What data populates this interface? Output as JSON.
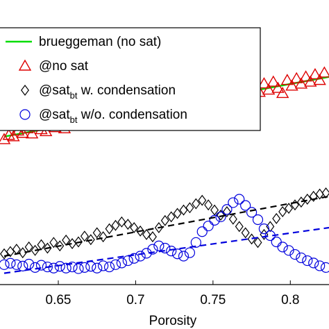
{
  "chart_data": {
    "type": "scatter",
    "title": "",
    "xlabel": "Porosity",
    "ylabel": "",
    "xlim": [
      0.615,
      0.825
    ],
    "ylim": [
      0.0,
      1.0
    ],
    "xticks": [
      "0.65",
      "0.7",
      "0.75",
      "0.8"
    ],
    "xtick_values": [
      0.65,
      0.7,
      0.75,
      0.8
    ],
    "grid": false,
    "legend_placement": "top-left",
    "series": [
      {
        "name": "brueggeman (no sat)",
        "kind": "line",
        "color": "#00dd00",
        "x": [
          0.615,
          0.825
        ],
        "y": [
          0.52,
          0.73
        ]
      },
      {
        "name": "@no sat",
        "kind": "triangle",
        "color": "#dd0000",
        "x": [
          0.615,
          0.618,
          0.621,
          0.624,
          0.627,
          0.63,
          0.633,
          0.636,
          0.639,
          0.642,
          0.645,
          0.648,
          0.651,
          0.654,
          0.657,
          0.66,
          0.663,
          0.666,
          0.669,
          0.672,
          0.675,
          0.678,
          0.681,
          0.684,
          0.687,
          0.69,
          0.693,
          0.696,
          0.699,
          0.702,
          0.705,
          0.708,
          0.711,
          0.714,
          0.717,
          0.72,
          0.723,
          0.726,
          0.729,
          0.732,
          0.735,
          0.738,
          0.741,
          0.744,
          0.747,
          0.75,
          0.753,
          0.756,
          0.759,
          0.762,
          0.765,
          0.768,
          0.771,
          0.774,
          0.777,
          0.78,
          0.783,
          0.786,
          0.789,
          0.792,
          0.795,
          0.798,
          0.801,
          0.804,
          0.807,
          0.81,
          0.813,
          0.816,
          0.819,
          0.822
        ],
        "y": [
          0.51,
          0.525,
          0.52,
          0.54,
          0.532,
          0.548,
          0.53,
          0.556,
          0.545,
          0.538,
          0.562,
          0.552,
          0.57,
          0.548,
          0.578,
          0.565,
          0.582,
          0.568,
          0.59,
          0.576,
          0.596,
          0.58,
          0.602,
          0.588,
          0.575,
          0.61,
          0.595,
          0.622,
          0.6,
          0.615,
          0.59,
          0.628,
          0.605,
          0.636,
          0.612,
          0.642,
          0.62,
          0.6,
          0.648,
          0.625,
          0.656,
          0.632,
          0.662,
          0.64,
          0.668,
          0.65,
          0.674,
          0.655,
          0.68,
          0.662,
          0.688,
          0.668,
          0.694,
          0.66,
          0.7,
          0.676,
          0.706,
          0.684,
          0.712,
          0.69,
          0.672,
          0.718,
          0.698,
          0.724,
          0.705,
          0.73,
          0.712,
          0.738,
          0.718,
          0.744
        ]
      },
      {
        "name": "@sat_bt w. condensation",
        "kind": "diamond",
        "color": "#000000",
        "x": [
          0.615,
          0.619,
          0.623,
          0.627,
          0.631,
          0.635,
          0.639,
          0.643,
          0.647,
          0.651,
          0.655,
          0.659,
          0.663,
          0.667,
          0.671,
          0.675,
          0.679,
          0.683,
          0.687,
          0.691,
          0.695,
          0.699,
          0.703,
          0.707,
          0.711,
          0.715,
          0.719,
          0.723,
          0.727,
          0.731,
          0.735,
          0.739,
          0.743,
          0.747,
          0.751,
          0.755,
          0.759,
          0.763,
          0.767,
          0.771,
          0.775,
          0.779,
          0.783,
          0.787,
          0.791,
          0.795,
          0.799,
          0.803,
          0.807,
          0.811,
          0.815,
          0.819,
          0.823
        ],
        "y": [
          0.108,
          0.116,
          0.124,
          0.112,
          0.132,
          0.12,
          0.14,
          0.128,
          0.148,
          0.136,
          0.156,
          0.144,
          0.15,
          0.17,
          0.158,
          0.182,
          0.168,
          0.196,
          0.208,
          0.22,
          0.212,
          0.2,
          0.188,
          0.176,
          0.168,
          0.2,
          0.225,
          0.238,
          0.25,
          0.262,
          0.27,
          0.284,
          0.296,
          0.28,
          0.262,
          0.244,
          0.256,
          0.23,
          0.204,
          0.182,
          0.16,
          0.148,
          0.176,
          0.204,
          0.232,
          0.256,
          0.268,
          0.28,
          0.29,
          0.3,
          0.31,
          0.318,
          0.322
        ]
      },
      {
        "name": "@sat_bt w/o. condensation",
        "kind": "circle",
        "color": "#0000dd",
        "x": [
          0.615,
          0.619,
          0.623,
          0.627,
          0.631,
          0.635,
          0.639,
          0.643,
          0.647,
          0.651,
          0.655,
          0.659,
          0.663,
          0.667,
          0.671,
          0.675,
          0.679,
          0.683,
          0.687,
          0.691,
          0.695,
          0.699,
          0.703,
          0.707,
          0.711,
          0.715,
          0.719,
          0.723,
          0.727,
          0.731,
          0.735,
          0.739,
          0.743,
          0.747,
          0.751,
          0.755,
          0.759,
          0.763,
          0.767,
          0.771,
          0.775,
          0.779,
          0.783,
          0.787,
          0.791,
          0.795,
          0.799,
          0.803,
          0.807,
          0.811,
          0.815,
          0.819,
          0.823
        ],
        "y": [
          0.07,
          0.075,
          0.07,
          0.065,
          0.072,
          0.06,
          0.068,
          0.062,
          0.058,
          0.064,
          0.058,
          0.062,
          0.056,
          0.06,
          0.064,
          0.058,
          0.066,
          0.062,
          0.07,
          0.076,
          0.084,
          0.092,
          0.1,
          0.11,
          0.124,
          0.136,
          0.128,
          0.118,
          0.108,
          0.1,
          0.112,
          0.148,
          0.186,
          0.206,
          0.226,
          0.238,
          0.264,
          0.288,
          0.3,
          0.278,
          0.254,
          0.228,
          0.196,
          0.172,
          0.15,
          0.132,
          0.12,
          0.106,
          0.094,
          0.084,
          0.076,
          0.066,
          0.06
        ]
      },
      {
        "name": "",
        "kind": "dashed-line",
        "color": "#000000",
        "x": [
          0.615,
          0.825
        ],
        "y": [
          0.1,
          0.31
        ]
      },
      {
        "name": "",
        "kind": "dashed-line",
        "color": "#0000dd",
        "x": [
          0.615,
          0.825
        ],
        "y": [
          0.04,
          0.2
        ]
      }
    ],
    "legend": {
      "entries": [
        {
          "series": 0,
          "text": "brueggeman (no sat)"
        },
        {
          "series": 1,
          "text": "@no sat"
        },
        {
          "series": 2,
          "text_main": "@sat",
          "text_sub": "bt",
          "text_after": " w. condensation"
        },
        {
          "series": 3,
          "text_main": "@sat",
          "text_sub": "bt",
          "text_after": " w/o. condensation"
        }
      ]
    }
  }
}
